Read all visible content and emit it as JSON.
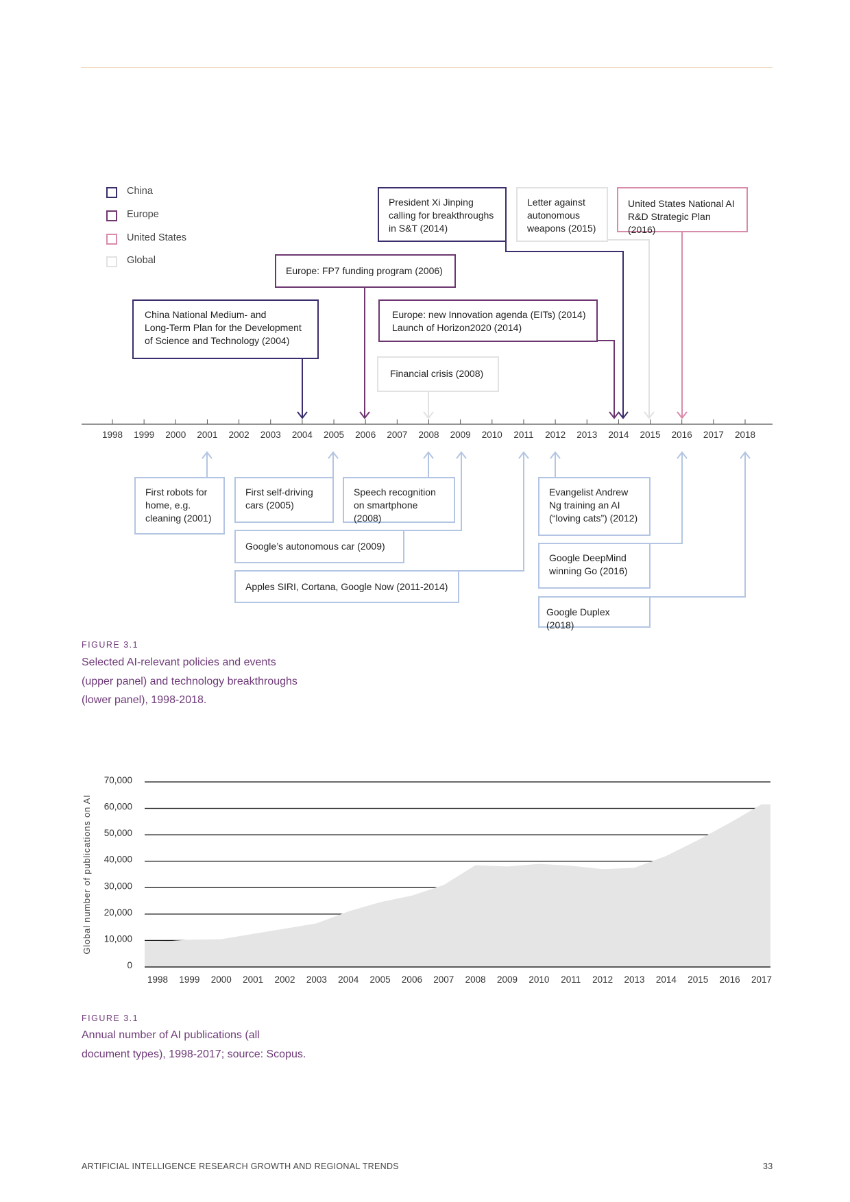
{
  "legend": [
    {
      "label": "China",
      "color": "#3b2d6b"
    },
    {
      "label": "Europe",
      "color": "#6d3670"
    },
    {
      "label": "United States",
      "color": "#d98bab"
    },
    {
      "label": "Global",
      "color": "#e2e2e2"
    }
  ],
  "timeline": {
    "years": [
      "1998",
      "1999",
      "2000",
      "2001",
      "2002",
      "2003",
      "2004",
      "2005",
      "2006",
      "2007",
      "2008",
      "2009",
      "2010",
      "2011",
      "2012",
      "2013",
      "2014",
      "2015",
      "2016",
      "2017",
      "2018"
    ],
    "policies": [
      {
        "text": "President Xi Jinping\ncalling for breakthroughs\nin S&T (2014)",
        "region": "China"
      },
      {
        "text": "Letter against\nautonomous\nweapons (2015)",
        "region": "Global"
      },
      {
        "text": "United States National AI\nR&D Strategic Plan (2016)",
        "region": "United States"
      },
      {
        "text": "Europe: FP7 funding program (2006)",
        "region": "Europe"
      },
      {
        "text": "China National Medium- and\nLong-Term Plan for the Development\nof Science and Technology (2004)",
        "region": "China"
      },
      {
        "text": "Europe: new Innovation agenda (EITs) (2014)\nLaunch of Horizon2020 (2014)",
        "region": "Europe"
      },
      {
        "text": "Financial crisis (2008)",
        "region": "Global"
      }
    ],
    "breakthroughs": [
      {
        "text": "First robots for\nhome, e.g.\ncleaning (2001)"
      },
      {
        "text": "First self-driving\ncars (2005)"
      },
      {
        "text": "Speech recognition\non smartphone (2008)"
      },
      {
        "text": "Google’s autonomous car (2009)"
      },
      {
        "text": "Apples SIRI, Cortana, Google Now (2011-2014)"
      },
      {
        "text": "Evangelist Andrew\nNg training an AI\n(“loving cats”) (2012)"
      },
      {
        "text": "Google DeepMind\nwinning Go (2016)"
      },
      {
        "text": "Google Duplex (2018)"
      }
    ],
    "tech_color": "#b3c5e3"
  },
  "caption1": {
    "label": "FIGURE 3.1",
    "text": "Selected AI-relevant policies and events\n(upper panel) and technology breakthroughs\n(lower panel), 1998-2018."
  },
  "chart_data": {
    "type": "area",
    "title": "",
    "xlabel": "",
    "ylabel": "Global number of publications on AI",
    "x": [
      1998,
      1999,
      2000,
      2001,
      2002,
      2003,
      2004,
      2005,
      2006,
      2007,
      2008,
      2009,
      2010,
      2011,
      2012,
      2013,
      2014,
      2015,
      2016,
      2017
    ],
    "values": [
      9500,
      10300,
      10500,
      12500,
      14500,
      16500,
      21000,
      24500,
      27000,
      31000,
      38500,
      38000,
      39000,
      38300,
      37000,
      37500,
      42000,
      48000,
      54500,
      61500
    ],
    "ylim": [
      0,
      70000
    ],
    "yticks": [
      "0",
      "10,000",
      "20,000",
      "30,000",
      "40,000",
      "50,000",
      "60,000",
      "70,000"
    ],
    "fill_color": "#e5e5e6",
    "grid": true
  },
  "caption2": {
    "label": "FIGURE 3.1",
    "text": "Annual number of AI publications (all\ndocument types), 1998-2017; source: Scopus."
  },
  "footer": {
    "title": "ARTIFICIAL INTELLIGENCE RESEARCH GROWTH  AND REGIONAL TRENDS",
    "page": "33"
  }
}
